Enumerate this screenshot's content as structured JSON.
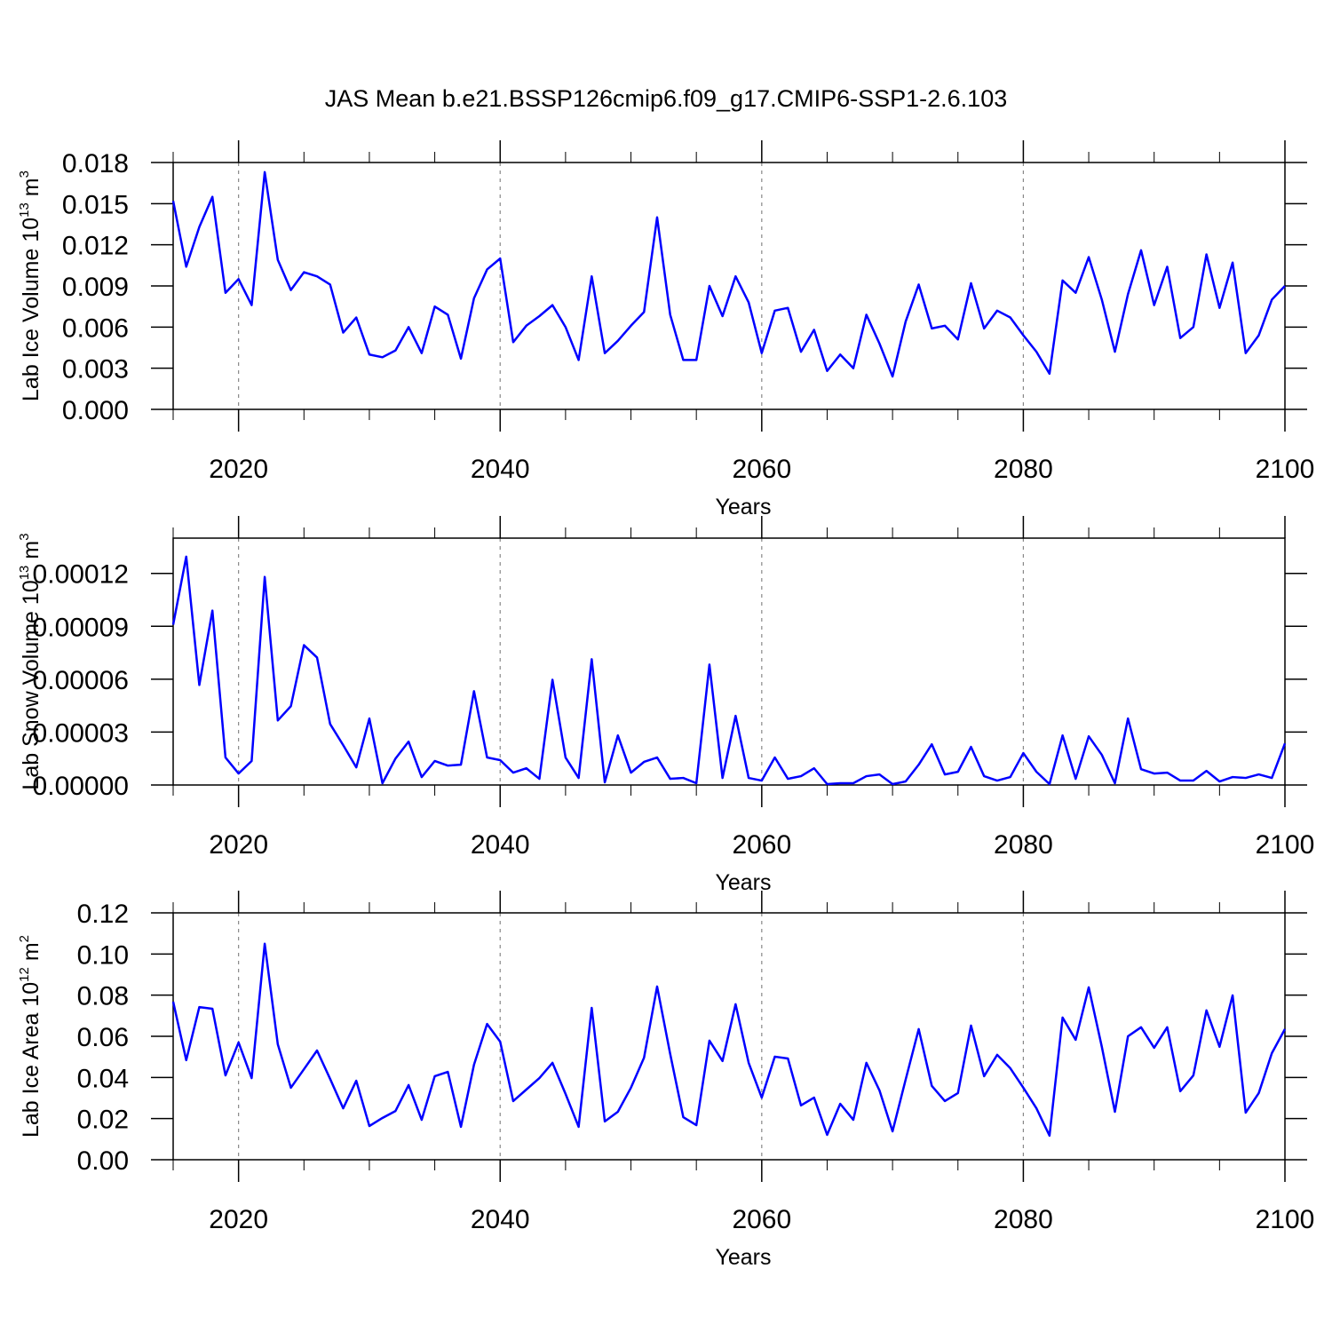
{
  "title": "JAS Mean b.e21.BSSP126cmip6.f09_g17.CMIP6-SSP1-2.6.103",
  "chart_data": [
    {
      "type": "line",
      "xlabel": "Years",
      "ylabel": {
        "text": "Lab Ice Volume 10",
        "exponent": "13",
        "unit": "m",
        "unit_exponent": "3"
      },
      "color": "#0000ff",
      "grid": "x",
      "xlim": [
        2015,
        2100
      ],
      "xticks": [
        2020,
        2040,
        2060,
        2080,
        2100
      ],
      "xminorticks": [
        2015,
        2025,
        2030,
        2035,
        2045,
        2050,
        2055,
        2065,
        2070,
        2075,
        2085,
        2090,
        2095
      ],
      "ylim": [
        0,
        0.018
      ],
      "yticks": [
        {
          "value": 0,
          "label": "0.000"
        },
        0.003,
        0.006,
        0.009,
        0.012,
        0.015,
        0.018
      ],
      "x": [
        2015,
        2016,
        2017,
        2018,
        2019,
        2020,
        2021,
        2022,
        2023,
        2024,
        2025,
        2026,
        2027,
        2028,
        2029,
        2030,
        2031,
        2032,
        2033,
        2034,
        2035,
        2036,
        2037,
        2038,
        2039,
        2040,
        2041,
        2042,
        2043,
        2044,
        2045,
        2046,
        2047,
        2048,
        2049,
        2050,
        2051,
        2052,
        2053,
        2054,
        2055,
        2056,
        2057,
        2058,
        2059,
        2060,
        2061,
        2062,
        2063,
        2064,
        2065,
        2066,
        2067,
        2068,
        2069,
        2070,
        2071,
        2072,
        2073,
        2074,
        2075,
        2076,
        2077,
        2078,
        2079,
        2080,
        2081,
        2082,
        2083,
        2084,
        2085,
        2086,
        2087,
        2088,
        2089,
        2090,
        2091,
        2092,
        2093,
        2094,
        2095,
        2096,
        2097,
        2098,
        2099,
        2100
      ],
      "values": [
        0.0152,
        0.0104,
        0.0133,
        0.0155,
        0.0085,
        0.0095,
        0.0076,
        0.0173,
        0.0109,
        0.0087,
        0.01,
        0.0097,
        0.0091,
        0.0056,
        0.0067,
        0.004,
        0.0038,
        0.0043,
        0.006,
        0.0041,
        0.0075,
        0.0069,
        0.0037,
        0.0081,
        0.0102,
        0.011,
        0.0049,
        0.0061,
        0.0068,
        0.0076,
        0.006,
        0.0036,
        0.0097,
        0.0041,
        0.005,
        0.0061,
        0.0071,
        0.014,
        0.0069,
        0.0036,
        0.0036,
        0.009,
        0.0068,
        0.0097,
        0.0078,
        0.0041,
        0.0072,
        0.0074,
        0.0042,
        0.0058,
        0.0028,
        0.004,
        0.003,
        0.0069,
        0.0048,
        0.0024,
        0.0064,
        0.0091,
        0.0059,
        0.0061,
        0.0051,
        0.0092,
        0.0059,
        0.0072,
        0.0067,
        0.0054,
        0.0042,
        0.0026,
        0.0094,
        0.0085,
        0.0111,
        0.008,
        0.0042,
        0.0084,
        0.0116,
        0.0076,
        0.0104,
        0.0052,
        0.006,
        0.0113,
        0.0074,
        0.0107,
        0.0041,
        0.0054,
        0.008,
        0.009
      ]
    },
    {
      "type": "line",
      "xlabel": "Years",
      "ylabel": {
        "text": "Lab Snow Volume 10",
        "exponent": "13",
        "unit": "m",
        "unit_exponent": "3"
      },
      "color": "#0000ff",
      "grid": "x",
      "xlim": [
        2015,
        2100
      ],
      "xticks": [
        2020,
        2040,
        2060,
        2080,
        2100
      ],
      "xminorticks": [
        2015,
        2025,
        2030,
        2035,
        2045,
        2050,
        2055,
        2065,
        2070,
        2075,
        2085,
        2090,
        2095
      ],
      "ylim": [
        0,
        0.00014
      ],
      "yticks": [
        {
          "value": 0,
          "label": "0.00000"
        },
        {
          "value": 3e-05,
          "label": "0.00003"
        },
        {
          "value": 6e-05,
          "label": "0.00006"
        },
        {
          "value": 9e-05,
          "label": "0.00009"
        },
        {
          "value": 0.00012,
          "label": "0.00012"
        }
      ],
      "x": [
        2015,
        2016,
        2017,
        2018,
        2019,
        2020,
        2021,
        2022,
        2023,
        2024,
        2025,
        2026,
        2027,
        2028,
        2029,
        2030,
        2031,
        2032,
        2033,
        2034,
        2035,
        2036,
        2037,
        2038,
        2039,
        2040,
        2041,
        2042,
        2043,
        2044,
        2045,
        2046,
        2047,
        2048,
        2049,
        2050,
        2051,
        2052,
        2053,
        2054,
        2055,
        2056,
        2057,
        2058,
        2059,
        2060,
        2061,
        2062,
        2063,
        2064,
        2065,
        2066,
        2067,
        2068,
        2069,
        2070,
        2071,
        2072,
        2073,
        2074,
        2075,
        2076,
        2077,
        2078,
        2079,
        2080,
        2081,
        2082,
        2083,
        2084,
        2085,
        2086,
        2087,
        2088,
        2089,
        2090,
        2091,
        2092,
        2093,
        2094,
        2095,
        2096,
        2097,
        2098,
        2099,
        2100
      ],
      "values": [
        9.09e-05,
        0.0001295,
        5.67e-05,
        9.89e-05,
        1.56e-05,
        6.5e-06,
        1.36e-05,
        0.000118,
        3.66e-05,
        4.47e-05,
        7.93e-05,
        7.23e-05,
        3.46e-05,
        2.26e-05,
        1e-05,
        3.77e-05,
        1e-06,
        1.5e-05,
        2.46e-05,
        4.5e-06,
        1.36e-05,
        1.1e-05,
        1.15e-05,
        5.32e-05,
        1.56e-05,
        1.41e-05,
        7e-06,
        9.5e-06,
        3.5e-06,
        5.97e-05,
        1.56e-05,
        4e-06,
        7.13e-05,
        1.5e-06,
        2.81e-05,
        7e-06,
        1.31e-05,
        1.56e-05,
        3.5e-06,
        4e-06,
        1e-06,
        6.83e-05,
        4e-06,
        3.92e-05,
        4e-06,
        2.5e-06,
        1.56e-05,
        3.5e-06,
        5e-06,
        9.5e-06,
        5e-07,
        1e-06,
        1e-06,
        5e-06,
        6e-06,
        5e-07,
        2e-06,
        1.15e-05,
        2.31e-05,
        6e-06,
        7.5e-06,
        2.16e-05,
        5e-06,
        2.5e-06,
        4.5e-06,
        1.81e-05,
        7.5e-06,
        5e-07,
        2.81e-05,
        3.5e-06,
        2.76e-05,
        1.71e-05,
        1e-06,
        3.77e-05,
        9e-06,
        6.5e-06,
        7e-06,
        2.5e-06,
        2.5e-06,
        8e-06,
        2e-06,
        4.5e-06,
        4e-06,
        6e-06,
        4e-06,
        2.36e-05
      ]
    },
    {
      "type": "line",
      "xlabel": "Years",
      "ylabel": {
        "text": "Lab Ice Area 10",
        "exponent": "12",
        "unit": "m",
        "unit_exponent": "2"
      },
      "color": "#0000ff",
      "grid": "x",
      "xlim": [
        2015,
        2100
      ],
      "xticks": [
        2020,
        2040,
        2060,
        2080,
        2100
      ],
      "xminorticks": [
        2015,
        2025,
        2030,
        2035,
        2045,
        2050,
        2055,
        2065,
        2070,
        2075,
        2085,
        2090,
        2095
      ],
      "ylim": [
        0,
        0.12
      ],
      "yticks": [
        {
          "value": 0,
          "label": "0.00"
        },
        0.02,
        0.04,
        0.06,
        0.08,
        {
          "value": 0.1,
          "label": "0.10"
        },
        0.12
      ],
      "x": [
        2015,
        2016,
        2017,
        2018,
        2019,
        2020,
        2021,
        2022,
        2023,
        2024,
        2025,
        2026,
        2027,
        2028,
        2029,
        2030,
        2031,
        2032,
        2033,
        2034,
        2035,
        2036,
        2037,
        2038,
        2039,
        2040,
        2041,
        2042,
        2043,
        2044,
        2045,
        2046,
        2047,
        2048,
        2049,
        2050,
        2051,
        2052,
        2053,
        2054,
        2055,
        2056,
        2057,
        2058,
        2059,
        2060,
        2061,
        2062,
        2063,
        2064,
        2065,
        2066,
        2067,
        2068,
        2069,
        2070,
        2071,
        2072,
        2073,
        2074,
        2075,
        2076,
        2077,
        2078,
        2079,
        2080,
        2081,
        2082,
        2083,
        2084,
        2085,
        2086,
        2087,
        2088,
        2089,
        2090,
        2091,
        2092,
        2093,
        2094,
        2095,
        2096,
        2097,
        2098,
        2099,
        2100
      ],
      "values": [
        0.0768,
        0.0484,
        0.0742,
        0.0734,
        0.041,
        0.057,
        0.0397,
        0.105,
        0.0561,
        0.035,
        0.044,
        0.0531,
        0.0393,
        0.025,
        0.0384,
        0.0164,
        0.0203,
        0.0237,
        0.0363,
        0.0194,
        0.0406,
        0.0427,
        0.016,
        0.0462,
        0.066,
        0.0574,
        0.0285,
        0.0341,
        0.0397,
        0.0471,
        0.032,
        0.016,
        0.0738,
        0.0186,
        0.0233,
        0.035,
        0.0496,
        0.0842,
        0.0514,
        0.0207,
        0.0168,
        0.0579,
        0.048,
        0.0756,
        0.0471,
        0.0302,
        0.0501,
        0.0492,
        0.0264,
        0.0302,
        0.0121,
        0.0272,
        0.0194,
        0.0471,
        0.0337,
        0.0138,
        0.0389,
        0.0635,
        0.0359,
        0.0285,
        0.0324,
        0.0652,
        0.0406,
        0.051,
        0.0445,
        0.035,
        0.025,
        0.0117,
        0.0691,
        0.0583,
        0.0838,
        0.0549,
        0.0233,
        0.06,
        0.0644,
        0.0544,
        0.0644,
        0.0333,
        0.041,
        0.0726,
        0.0549,
        0.0799,
        0.0229,
        0.0324,
        0.0518,
        0.0635
      ]
    }
  ]
}
